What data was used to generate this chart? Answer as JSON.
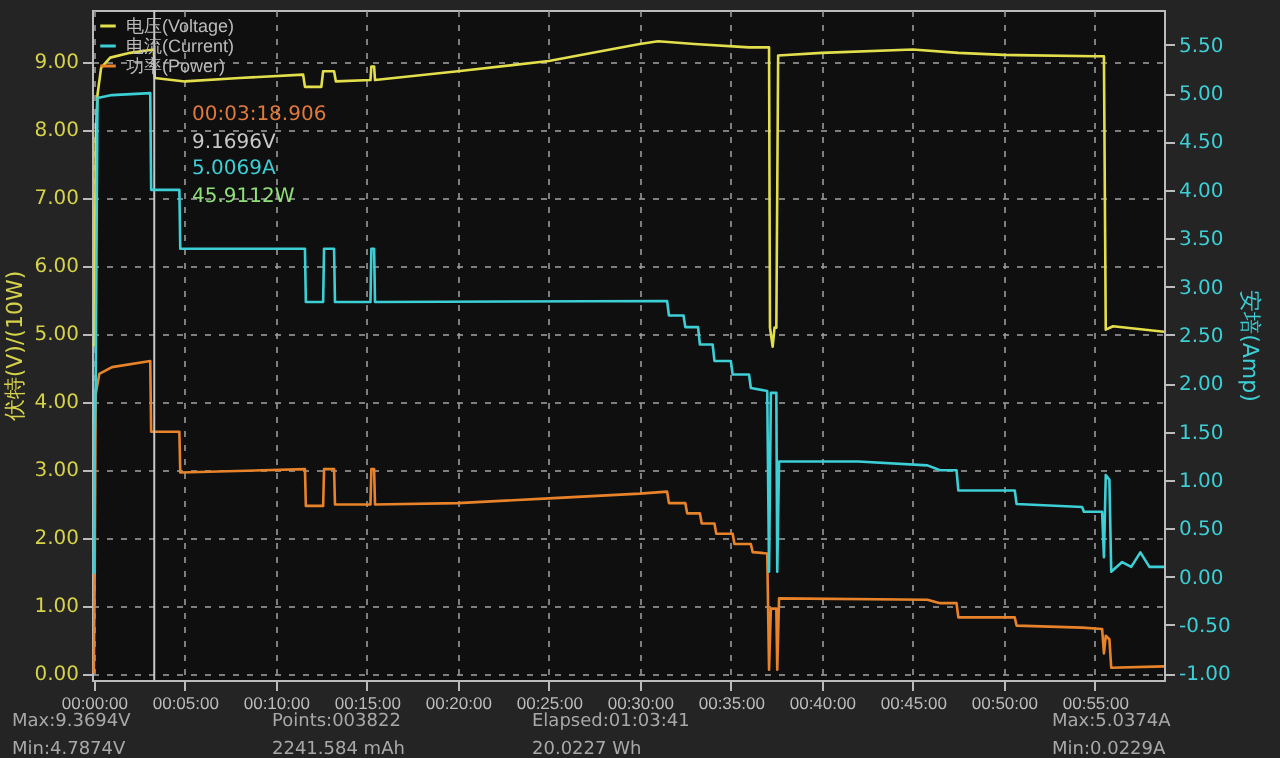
{
  "chart_data": {
    "type": "line",
    "ylabel": "伏特(V)/(10W)",
    "y2label": "安培(Amp)",
    "xlim": [
      -0.1,
      58.8
    ],
    "ylim": [
      -0.1,
      9.75
    ],
    "y2lim": [
      -1.07,
      5.86
    ],
    "xticks": [
      {
        "value": 0,
        "label": "00:00:00"
      },
      {
        "value": 5,
        "label": "00:05:00"
      },
      {
        "value": 10,
        "label": "00:10:00"
      },
      {
        "value": 15,
        "label": "00:15:00"
      },
      {
        "value": 20,
        "label": "00:20:00"
      },
      {
        "value": 25,
        "label": "00:25:00"
      },
      {
        "value": 30,
        "label": "00:30:00"
      },
      {
        "value": 35,
        "label": "00:35:00"
      },
      {
        "value": 40,
        "label": "00:40:00"
      },
      {
        "value": 45,
        "label": "00:45:00"
      },
      {
        "value": 50,
        "label": "00:50:00"
      },
      {
        "value": 55,
        "label": "00:55:00"
      }
    ],
    "yticks": [
      {
        "value": 0,
        "label": "0.00"
      },
      {
        "value": 1,
        "label": "1.00"
      },
      {
        "value": 2,
        "label": "2.00"
      },
      {
        "value": 3,
        "label": "3.00"
      },
      {
        "value": 4,
        "label": "4.00"
      },
      {
        "value": 5,
        "label": "5.00"
      },
      {
        "value": 6,
        "label": "6.00"
      },
      {
        "value": 7,
        "label": "7.00"
      },
      {
        "value": 8,
        "label": "8.00"
      },
      {
        "value": 9,
        "label": "9.00"
      }
    ],
    "y2ticks": [
      {
        "value": -1,
        "label": "-1.00"
      },
      {
        "value": -0.5,
        "label": "-0.50"
      },
      {
        "value": 0,
        "label": "0.00"
      },
      {
        "value": 0.5,
        "label": "0.50"
      },
      {
        "value": 1,
        "label": "1.00"
      },
      {
        "value": 1.5,
        "label": "1.50"
      },
      {
        "value": 2,
        "label": "2.00"
      },
      {
        "value": 2.5,
        "label": "2.50"
      },
      {
        "value": 3,
        "label": "3.00"
      },
      {
        "value": 3.5,
        "label": "3.50"
      },
      {
        "value": 4,
        "label": "4.00"
      },
      {
        "value": 4.5,
        "label": "4.50"
      },
      {
        "value": 5,
        "label": "5.00"
      },
      {
        "value": 5.5,
        "label": "5.50"
      }
    ],
    "grid": true,
    "legend": "top left",
    "line_style": "solid",
    "ref_lines": [
      {
        "axis": "x",
        "value": 3.32,
        "color": "#c8c8c8"
      }
    ],
    "annotations": [
      "00:03:18.906",
      "9.1696V",
      "5.0069A",
      "45.9112W",
      "Max:9.3694V",
      "Min:4.7874V",
      "Points:003822",
      "2241.584 mAh",
      "Elapsed:01:03:41",
      "20.0227 Wh",
      "Max:5.0374A",
      "Min:0.0229A"
    ],
    "series": [
      {
        "name": "电压(Voltage)",
        "color": "#e3df4c",
        "x": [
          0,
          0.05,
          0.1,
          0.2,
          0.4,
          0.9,
          2,
          3.3,
          3.35,
          5,
          8,
          11.5,
          11.6,
          12.5,
          12.6,
          13.2,
          13.3,
          15.2,
          15.25,
          15.4,
          15.45,
          20,
          25,
          28,
          30,
          31,
          33,
          36,
          37.1,
          37.15,
          37.3,
          37.4,
          37.5,
          37.6,
          40,
          45,
          47.5,
          50,
          55,
          55.5,
          55.6,
          56,
          58.8
        ],
        "values": [
          4.8,
          5.0,
          7.8,
          8.5,
          8.9,
          9.05,
          9.12,
          9.17,
          8.75,
          8.7,
          8.75,
          8.8,
          8.62,
          8.62,
          8.85,
          8.85,
          8.7,
          8.72,
          8.92,
          8.92,
          8.72,
          8.85,
          9.0,
          9.15,
          9.25,
          9.29,
          9.25,
          9.2,
          9.2,
          5.08,
          4.8,
          5.08,
          5.08,
          9.08,
          9.12,
          9.17,
          9.12,
          9.09,
          9.07,
          9.07,
          5.05,
          5.1,
          5.02
        ]
      },
      {
        "name": "电流(Current)",
        "color": "#3ccfd6",
        "axis": "y2",
        "x": [
          0,
          0.05,
          0.1,
          0.2,
          1,
          3.1,
          3.15,
          4.7,
          4.75,
          11.6,
          11.65,
          12.6,
          12.65,
          13.2,
          13.25,
          15.2,
          15.25,
          15.4,
          15.45,
          31.5,
          31.6,
          32.4,
          32.5,
          33.2,
          33.3,
          34,
          34.1,
          35,
          35.1,
          36,
          36.1,
          37,
          37.1,
          37.2,
          37.5,
          37.55,
          37.65,
          42,
          45.8,
          46.5,
          47.4,
          47.5,
          50.6,
          50.7,
          54.3,
          54.4,
          55.4,
          55.5,
          55.6,
          55.8,
          55.9,
          56.5,
          57,
          57.5,
          58,
          58.8
        ],
        "values": [
          0.03,
          1.45,
          2.0,
          4.95,
          4.98,
          5.0,
          4.0,
          4.0,
          3.39,
          3.39,
          2.84,
          2.84,
          3.39,
          3.39,
          2.84,
          2.84,
          3.39,
          3.39,
          2.84,
          2.85,
          2.7,
          2.7,
          2.58,
          2.58,
          2.4,
          2.4,
          2.23,
          2.23,
          2.09,
          2.09,
          1.95,
          1.92,
          0.05,
          1.9,
          1.9,
          0.05,
          1.19,
          1.19,
          1.15,
          1.1,
          1.1,
          0.89,
          0.89,
          0.75,
          0.72,
          0.67,
          0.67,
          0.2,
          1.05,
          1.0,
          0.05,
          0.15,
          0.1,
          0.25,
          0.1,
          0.1
        ]
      },
      {
        "name": "功率(Power)",
        "color": "#e8832a",
        "x": [
          0,
          0.05,
          0.1,
          0.3,
          1,
          3.1,
          3.15,
          4.7,
          4.75,
          11.6,
          11.65,
          12.6,
          12.65,
          13.2,
          13.25,
          15.2,
          15.25,
          15.4,
          15.45,
          20,
          25,
          30,
          31.5,
          31.6,
          32.5,
          32.6,
          33.3,
          33.4,
          34.1,
          34.2,
          35.1,
          35.2,
          36.1,
          36.2,
          37,
          37.1,
          37.2,
          37.5,
          37.55,
          37.65,
          45.8,
          46.5,
          47.4,
          47.5,
          50.6,
          50.7,
          54.3,
          55.4,
          55.5,
          55.6,
          55.8,
          55.9,
          58.8
        ],
        "values": [
          0,
          1.5,
          4.1,
          4.4,
          4.5,
          4.59,
          3.55,
          3.55,
          2.95,
          3.0,
          2.46,
          2.46,
          3.0,
          3.0,
          2.48,
          2.48,
          3.0,
          3.0,
          2.48,
          2.5,
          2.57,
          2.64,
          2.67,
          2.5,
          2.5,
          2.35,
          2.35,
          2.2,
          2.2,
          2.05,
          2.05,
          1.9,
          1.9,
          1.78,
          1.76,
          0.05,
          0.95,
          0.95,
          0.05,
          1.1,
          1.08,
          1.03,
          1.03,
          0.82,
          0.82,
          0.7,
          0.67,
          0.65,
          0.29,
          0.55,
          0.5,
          0.08,
          0.1
        ]
      }
    ]
  }
}
